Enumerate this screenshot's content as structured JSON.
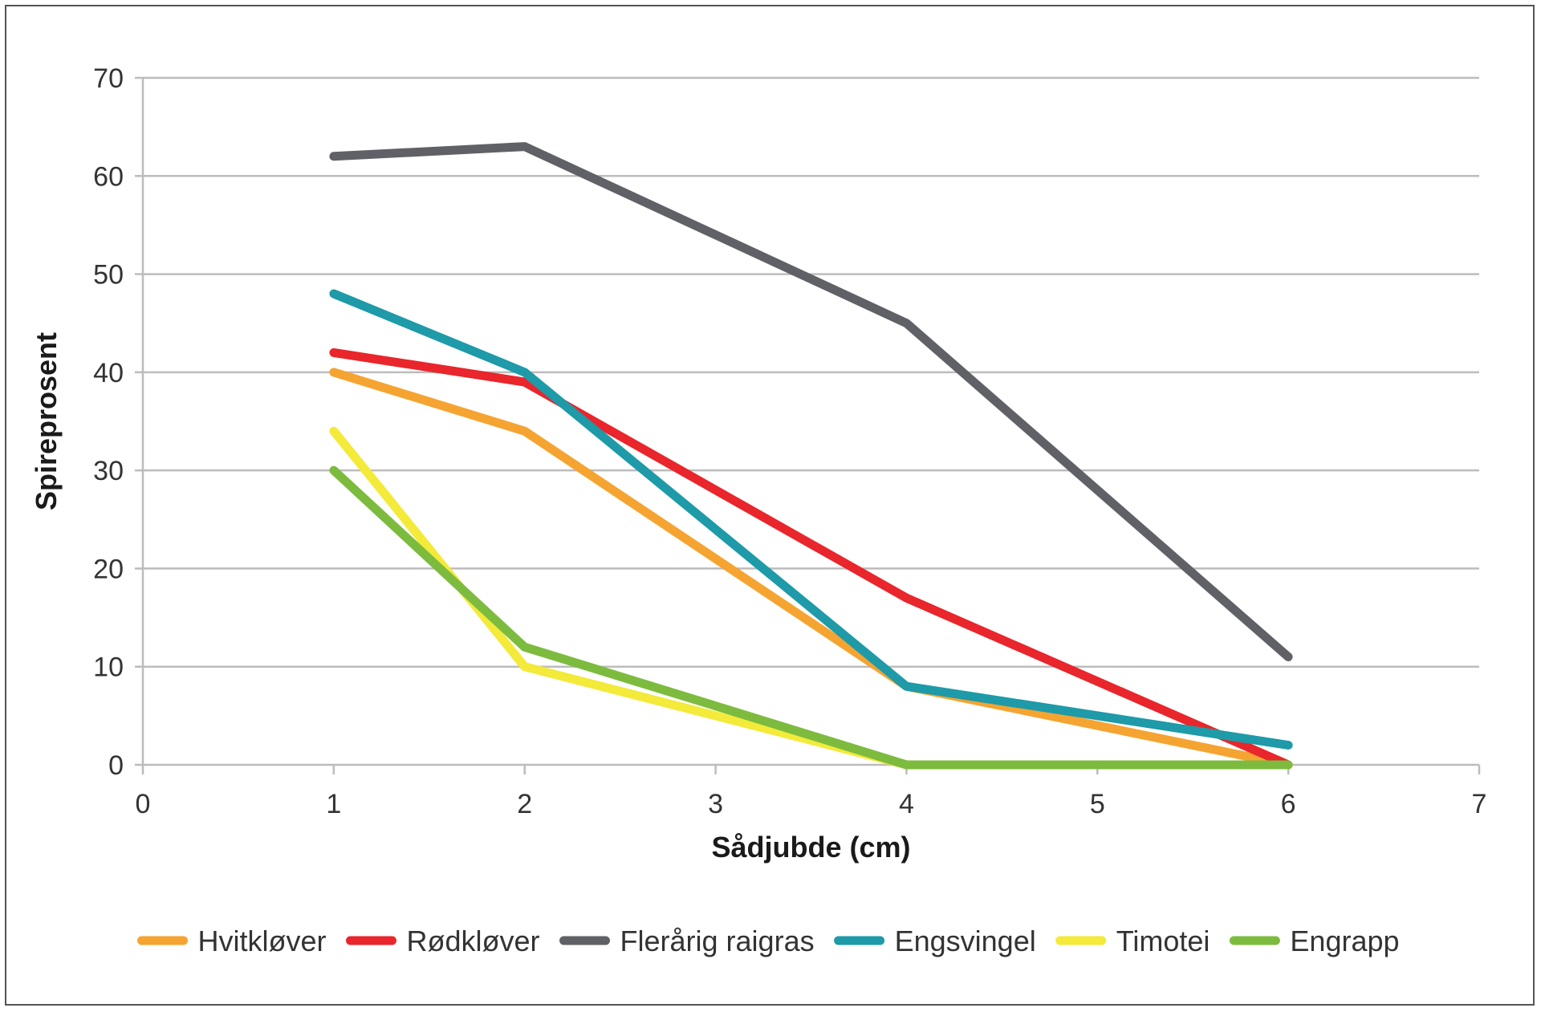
{
  "chart_data": {
    "type": "line",
    "title": "",
    "xlabel": "Sådjubde (cm)",
    "ylabel": "Spireprosent",
    "xlim": [
      0,
      7
    ],
    "ylim": [
      0,
      70
    ],
    "xticks": [
      0,
      1,
      2,
      3,
      4,
      5,
      6,
      7
    ],
    "yticks": [
      0,
      10,
      20,
      30,
      40,
      50,
      60,
      70
    ],
    "grid": "horizontal",
    "legend_position": "bottom",
    "x": [
      1,
      2,
      4,
      6
    ],
    "series": [
      {
        "name": "Hvitkløver",
        "color": "#F5A431",
        "values": [
          40,
          34,
          8,
          0
        ]
      },
      {
        "name": "Rødkløver",
        "color": "#E8262B",
        "values": [
          42,
          39,
          17,
          0
        ]
      },
      {
        "name": "Flerårig raigras",
        "color": "#5F6166",
        "values": [
          62,
          63,
          45,
          11
        ]
      },
      {
        "name": "Engsvingel",
        "color": "#1E9AA8",
        "values": [
          48,
          40,
          8,
          2
        ]
      },
      {
        "name": "Timotei",
        "color": "#F3EA3A",
        "values": [
          34,
          10,
          0,
          0
        ]
      },
      {
        "name": "Engrapp",
        "color": "#7DBB3F",
        "values": [
          30,
          12,
          0,
          0
        ]
      }
    ]
  }
}
